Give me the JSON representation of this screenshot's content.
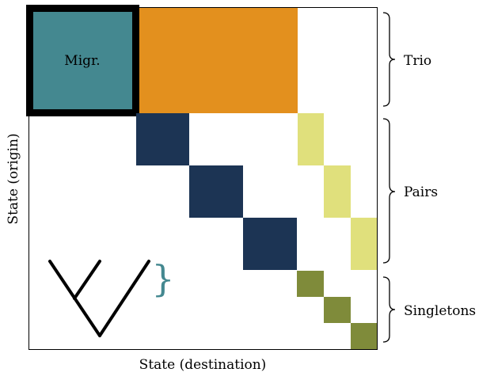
{
  "labels": {
    "migr": "Migr.",
    "trio": "Trio",
    "pairs": "Pairs",
    "singletons": "Singletons",
    "xlabel": "State (destination)",
    "ylabel": "State (origin)",
    "small_brace": "}"
  },
  "colors": {
    "migr": "#448890",
    "orange": "#e3901e",
    "navy": "#1c3454",
    "light_yellow": "#e0e07c",
    "olive": "#7f8b3a",
    "frame": "#000000",
    "small_brace": "#448890"
  },
  "icons": [
    "tree-icon",
    "brace-icon"
  ]
}
